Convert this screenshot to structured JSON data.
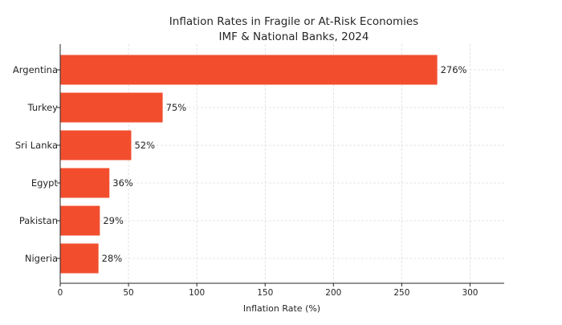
{
  "chart_data": {
    "type": "bar",
    "orientation": "horizontal",
    "title": "Inflation Rates in Fragile or At-Risk Economies",
    "subtitle": "IMF & National Banks, 2024",
    "xlabel": "Inflation Rate (%)",
    "ylabel": "",
    "categories": [
      "Argentina",
      "Turkey",
      "Sri Lanka",
      "Egypt",
      "Pakistan",
      "Nigeria"
    ],
    "values": [
      276,
      75,
      52,
      36,
      29,
      28
    ],
    "data_labels": [
      "276%",
      "75%",
      "52%",
      "36%",
      "29%",
      "28%"
    ],
    "xlim": [
      0,
      325
    ],
    "xticks": [
      0,
      50,
      100,
      150,
      200,
      250,
      300
    ],
    "grid": true,
    "bar_color": "#F24E2E"
  }
}
